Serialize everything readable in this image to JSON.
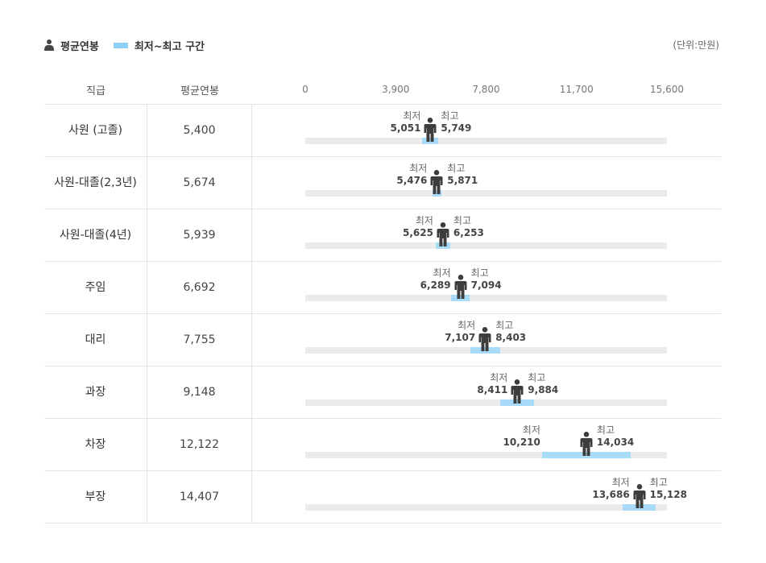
{
  "legend": {
    "avg_label": "평균연봉",
    "range_label": "최저~최고 구간",
    "avg_icon": "person-icon",
    "range_color": "#8ccff7"
  },
  "unit_label": "(단위:만원)",
  "table": {
    "col_rank": "직급",
    "col_avg": "평균연봉"
  },
  "labels": {
    "min": "최저",
    "max": "최고"
  },
  "chart_data": {
    "type": "range-bar",
    "xlim": [
      0,
      15600
    ],
    "ticks": [
      "0",
      "3,900",
      "7,800",
      "11,700",
      "15,600"
    ],
    "tick_values": [
      0,
      3900,
      7800,
      11700,
      15600
    ],
    "rows": [
      {
        "rank": "사원 (고졸)",
        "avg": 5400,
        "avg_text": "5,400",
        "min": 5051,
        "min_text": "5,051",
        "max": 5749,
        "max_text": "5,749"
      },
      {
        "rank": "사원-대졸(2,3년)",
        "avg": 5674,
        "avg_text": "5,674",
        "min": 5476,
        "min_text": "5,476",
        "max": 5871,
        "max_text": "5,871"
      },
      {
        "rank": "사원-대졸(4년)",
        "avg": 5939,
        "avg_text": "5,939",
        "min": 5625,
        "min_text": "5,625",
        "max": 6253,
        "max_text": "6,253"
      },
      {
        "rank": "주임",
        "avg": 6692,
        "avg_text": "6,692",
        "min": 6289,
        "min_text": "6,289",
        "max": 7094,
        "max_text": "7,094"
      },
      {
        "rank": "대리",
        "avg": 7755,
        "avg_text": "7,755",
        "min": 7107,
        "min_text": "7,107",
        "max": 8403,
        "max_text": "8,403"
      },
      {
        "rank": "과장",
        "avg": 9148,
        "avg_text": "9,148",
        "min": 8411,
        "min_text": "8,411",
        "max": 9884,
        "max_text": "9,884"
      },
      {
        "rank": "차장",
        "avg": 12122,
        "avg_text": "12,122",
        "min": 10210,
        "min_text": "10,210",
        "max": 14034,
        "max_text": "14,034"
      },
      {
        "rank": "부장",
        "avg": 14407,
        "avg_text": "14,407",
        "min": 13686,
        "min_text": "13,686",
        "max": 15128,
        "max_text": "15,128"
      }
    ]
  }
}
